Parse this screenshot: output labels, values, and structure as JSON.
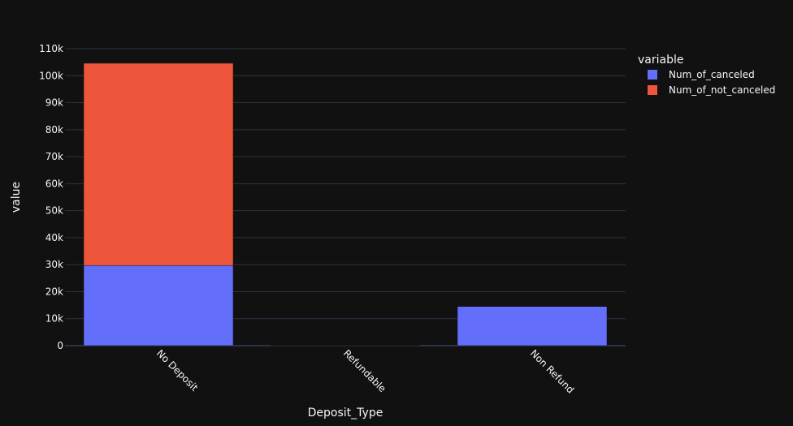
{
  "colors": {
    "background": "#111111",
    "grid": "#283442",
    "text": "#f2f5fa",
    "series_canceled": "#636efa",
    "series_not_canceled": "#ef553b"
  },
  "chart_data": {
    "type": "bar",
    "barmode": "stack",
    "categories": [
      "No Deposit",
      "Refundable",
      "Non Refund"
    ],
    "series": [
      {
        "name": "Num_of_canceled",
        "values": [
          29700,
          36,
          14500
        ]
      },
      {
        "name": "Num_of_not_canceled",
        "values": [
          74900,
          126,
          93
        ]
      }
    ],
    "xlabel": "Deposit_Type",
    "ylabel": "value",
    "ylim": [
      0,
      110000
    ],
    "yticks": [
      0,
      10000,
      20000,
      30000,
      40000,
      50000,
      60000,
      70000,
      80000,
      90000,
      100000,
      110000
    ],
    "ytick_labels": [
      "0",
      "10k",
      "20k",
      "30k",
      "40k",
      "50k",
      "60k",
      "70k",
      "80k",
      "90k",
      "100k",
      "110k"
    ],
    "xtick_rotation": 45,
    "grid": true,
    "legend": {
      "title": "variable",
      "placement": "top-right"
    }
  }
}
